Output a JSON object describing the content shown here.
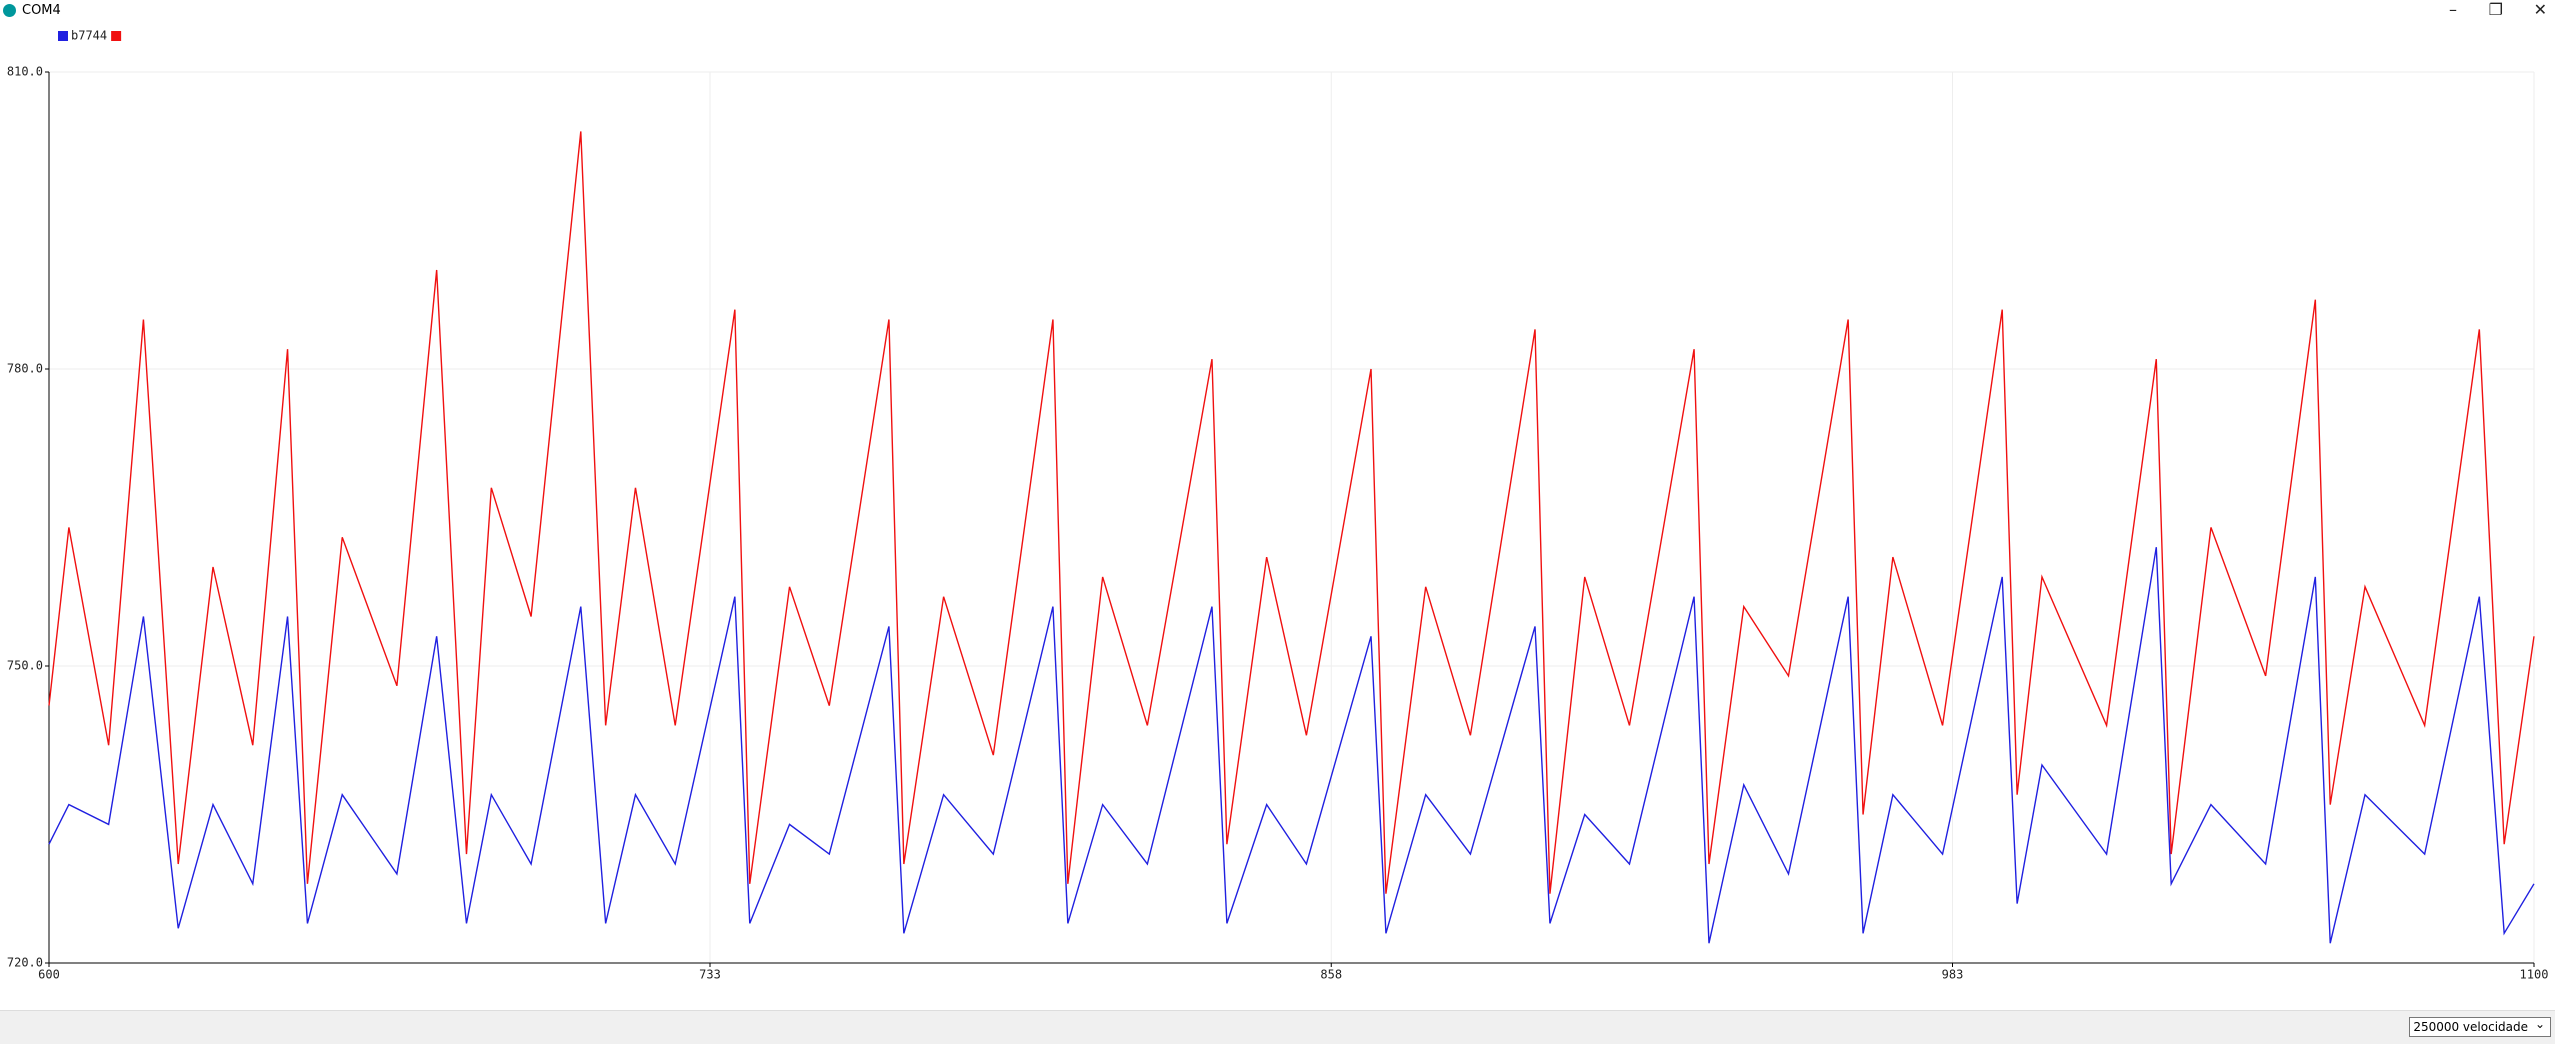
{
  "window": {
    "title": "COM4",
    "baud_select": "250000 velocidade"
  },
  "chart_data": {
    "type": "line",
    "x": [
      600,
      604,
      612,
      619,
      626,
      633,
      641,
      648,
      652,
      659,
      670,
      678,
      684,
      689,
      697,
      707,
      712,
      718,
      726,
      738,
      741,
      749,
      757,
      769,
      772,
      780,
      790,
      802,
      805,
      812,
      821,
      834,
      837,
      845,
      853,
      866,
      869,
      877,
      886,
      899,
      902,
      909,
      918,
      931,
      934,
      941,
      950,
      962,
      965,
      971,
      981,
      993,
      996,
      1001,
      1014,
      1024,
      1027,
      1035,
      1046,
      1056,
      1059,
      1066,
      1078,
      1089,
      1094,
      1100
    ],
    "series": [
      {
        "name": "b7744",
        "color": "#2020e0",
        "values": [
          732,
          736,
          734,
          755,
          723.5,
          736,
          728,
          755,
          724,
          737,
          729,
          753,
          724,
          737,
          730,
          756,
          724,
          737,
          730,
          757,
          724,
          734,
          731,
          754,
          723,
          737,
          731,
          756,
          724,
          736,
          730,
          756,
          724,
          736,
          730,
          753,
          723,
          737,
          731,
          754,
          724,
          735,
          730,
          757,
          722,
          738,
          729,
          757,
          723,
          737,
          731,
          759,
          726,
          740,
          731,
          762,
          728,
          736,
          730,
          759,
          722,
          737,
          731,
          757,
          723,
          728
        ]
      },
      {
        "color": "#f01010",
        "values": [
          746,
          764,
          742,
          785,
          730,
          760,
          742,
          782,
          728,
          763,
          748,
          790,
          731,
          768,
          755,
          804,
          744,
          768,
          744,
          786,
          728,
          758,
          746,
          785,
          730,
          757,
          741,
          785,
          728,
          759,
          744,
          781,
          732,
          761,
          743,
          780,
          727,
          758,
          743,
          784,
          727,
          759,
          744,
          782,
          730,
          756,
          749,
          785,
          735,
          761,
          744,
          786,
          737,
          759,
          744,
          781,
          731,
          764,
          749,
          787,
          736,
          758,
          744,
          784,
          732,
          753
        ]
      }
    ],
    "xlim": [
      600,
      1100
    ],
    "xticks": [
      600,
      733,
      858,
      983,
      1100
    ],
    "ylim": [
      720,
      810
    ],
    "yticks": [
      {
        "value": 720,
        "label": "720.0"
      },
      {
        "value": 750,
        "label": "750.0"
      },
      {
        "value": 780,
        "label": "780.0"
      },
      {
        "value": 810,
        "label": "810.0"
      }
    ],
    "grid": true
  }
}
